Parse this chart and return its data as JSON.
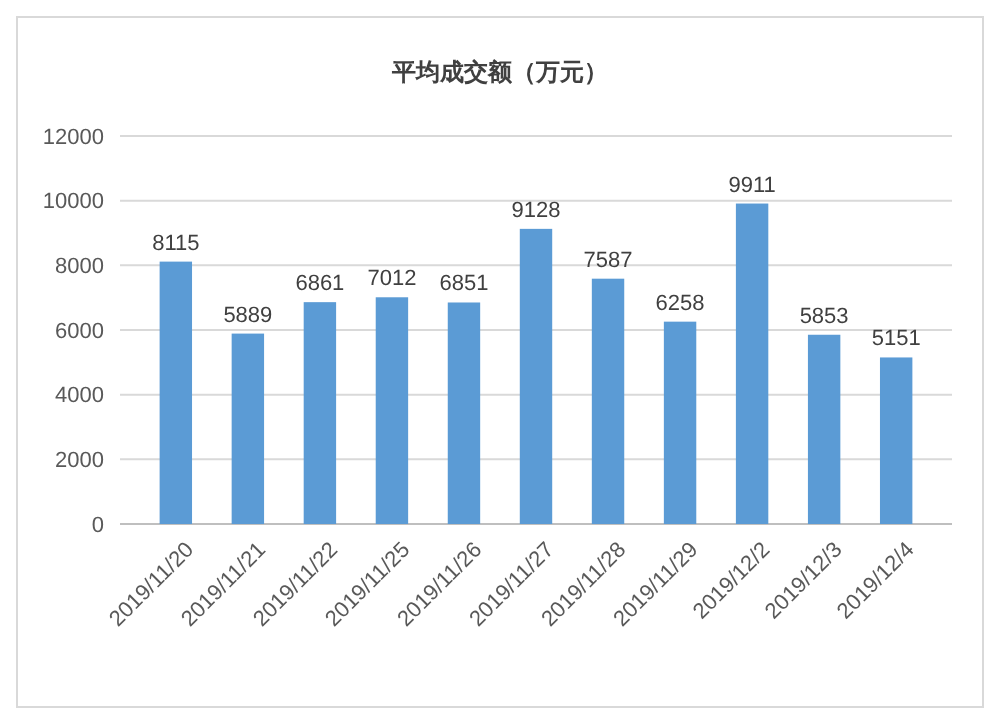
{
  "chart_data": {
    "type": "bar",
    "title": "平均成交额（万元）",
    "categories": [
      "2019/11/20",
      "2019/11/21",
      "2019/11/22",
      "2019/11/25",
      "2019/11/26",
      "2019/11/27",
      "2019/11/28",
      "2019/11/29",
      "2019/12/2",
      "2019/12/3",
      "2019/12/4"
    ],
    "values": [
      8115,
      5889,
      6861,
      7012,
      6851,
      9128,
      7587,
      6258,
      9911,
      5853,
      5151
    ],
    "color": "#5b9bd5",
    "ylim": [
      0,
      12000
    ],
    "yticks": [
      0,
      2000,
      4000,
      6000,
      8000,
      10000,
      12000
    ],
    "grid": "y",
    "data_labels": true
  }
}
